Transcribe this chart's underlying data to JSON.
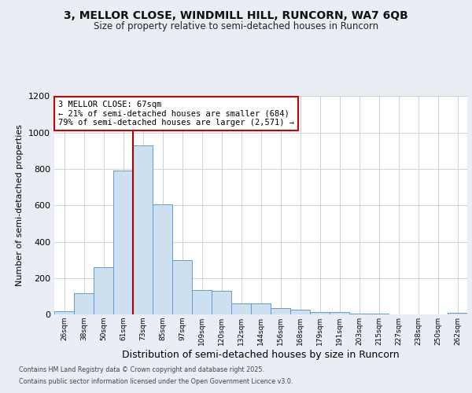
{
  "title_line1": "3, MELLOR CLOSE, WINDMILL HILL, RUNCORN, WA7 6QB",
  "title_line2": "Size of property relative to semi-detached houses in Runcorn",
  "xlabel": "Distribution of semi-detached houses by size in Runcorn",
  "ylabel": "Number of semi-detached properties",
  "bins": [
    "26sqm",
    "38sqm",
    "50sqm",
    "61sqm",
    "73sqm",
    "85sqm",
    "97sqm",
    "109sqm",
    "120sqm",
    "132sqm",
    "144sqm",
    "156sqm",
    "168sqm",
    "179sqm",
    "191sqm",
    "203sqm",
    "215sqm",
    "227sqm",
    "238sqm",
    "250sqm",
    "262sqm"
  ],
  "values": [
    18,
    115,
    260,
    790,
    930,
    605,
    300,
    135,
    130,
    60,
    60,
    35,
    25,
    12,
    12,
    5,
    5,
    2,
    2,
    2,
    8
  ],
  "bar_color": "#cce0f0",
  "bar_edge_color": "#6699cc",
  "property_bin_index": 3,
  "annotation_title": "3 MELLOR CLOSE: 67sqm",
  "annotation_line1": "← 21% of semi-detached houses are smaller (684)",
  "annotation_line2": "79% of semi-detached houses are larger (2,571) →",
  "vline_color": "#aa0000",
  "annotation_box_color": "#ffffff",
  "annotation_box_edge": "#cc0000",
  "footer_line1": "Contains HM Land Registry data © Crown copyright and database right 2025.",
  "footer_line2": "Contains public sector information licensed under the Open Government Licence v3.0.",
  "ylim": [
    0,
    1200
  ],
  "yticks": [
    0,
    200,
    400,
    600,
    800,
    1000,
    1200
  ],
  "bg_color": "#e8eef4",
  "plot_bg_color": "#ffffff",
  "grid_color": "#c8d4e0"
}
